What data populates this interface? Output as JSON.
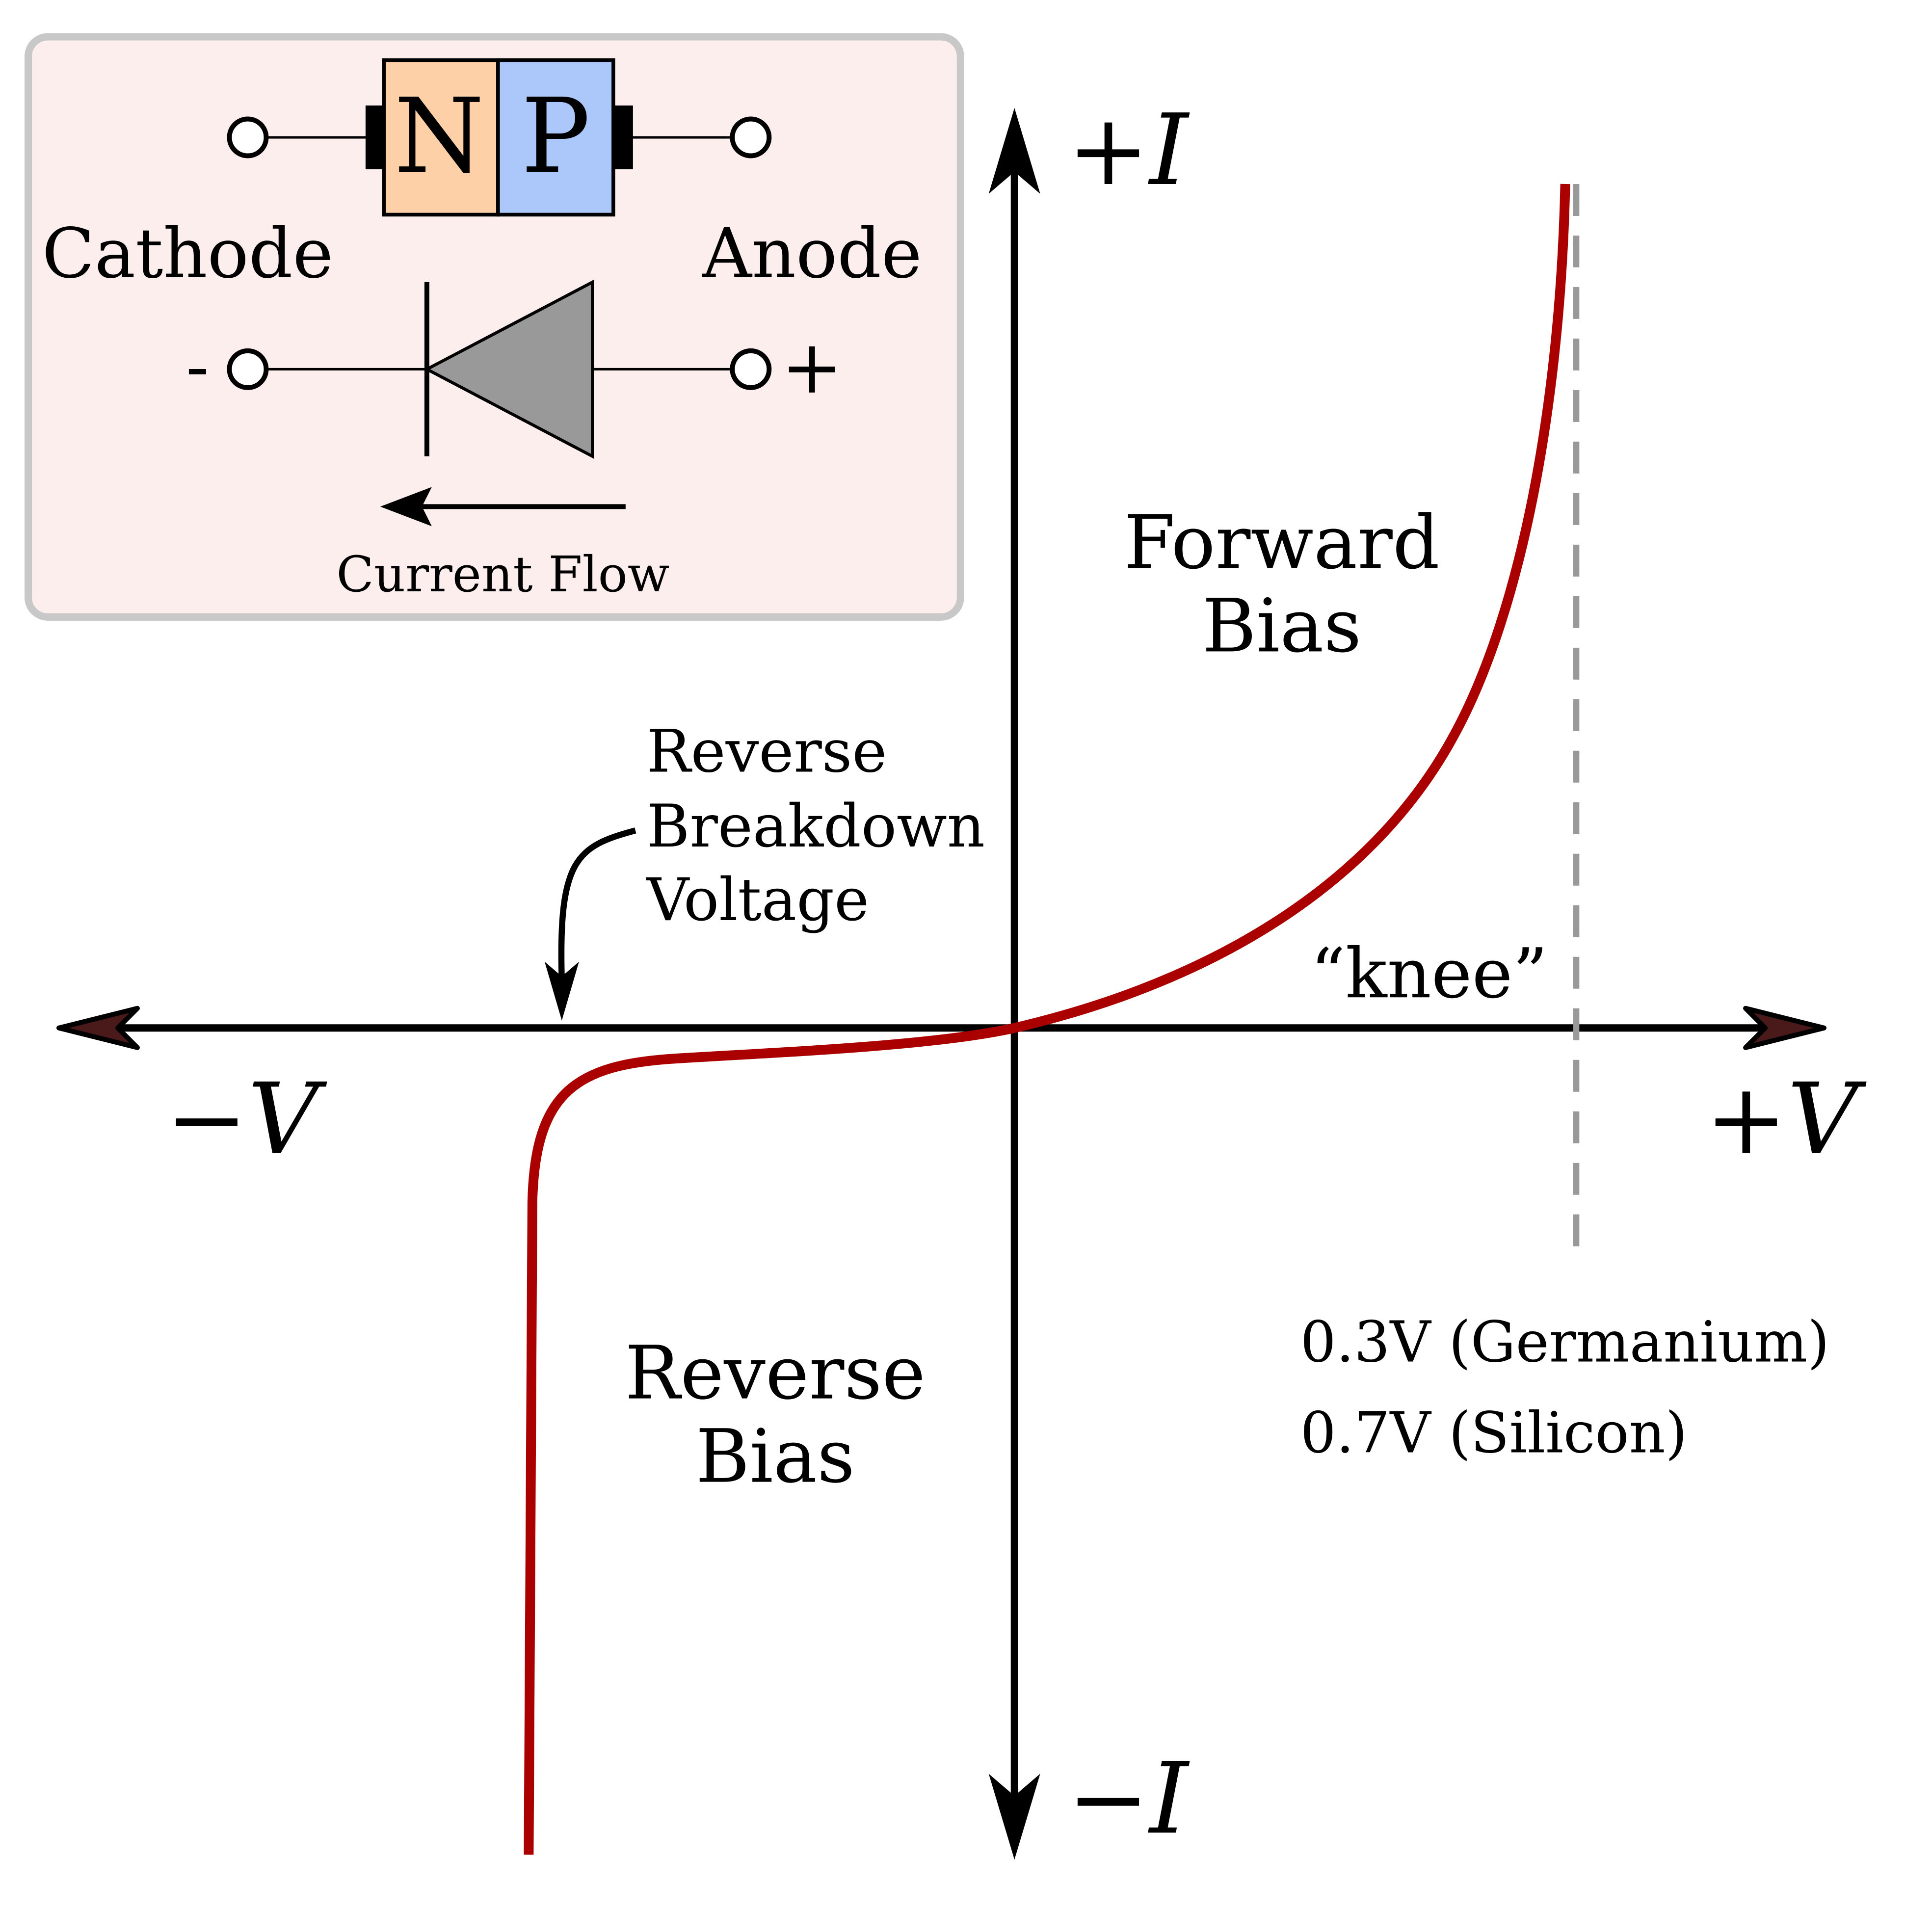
{
  "inset": {
    "n_region_label": "N",
    "p_region_label": "P",
    "cathode_label": "Cathode",
    "anode_label": "Anode",
    "minus_terminal_sign": "-",
    "plus_terminal_sign": "+",
    "current_flow_label": "Current Flow",
    "colors": {
      "background": "#fdeeee",
      "border": "#c8c8c8",
      "n_region": "#fdd0a8",
      "p_region": "#acc8fb",
      "diode_symbol": "#999999"
    }
  },
  "axes": {
    "pos_current_label": "+I",
    "neg_current_label": "−I",
    "pos_voltage_label": "+V",
    "neg_voltage_label": "−V"
  },
  "labels": {
    "forward_bias": [
      "Forward",
      "Bias"
    ],
    "reverse_bias": [
      "Reverse",
      "Bias"
    ],
    "breakdown": [
      "Reverse",
      "Breakdown",
      "Voltage"
    ],
    "knee": "“knee”",
    "threshold_germanium": "0.3V (Germanium)",
    "threshold_silicon": "0.7V (Silicon)"
  },
  "colors": {
    "curve": "#aa0000",
    "threshold_line": "#999999",
    "axes": "#000000"
  }
}
